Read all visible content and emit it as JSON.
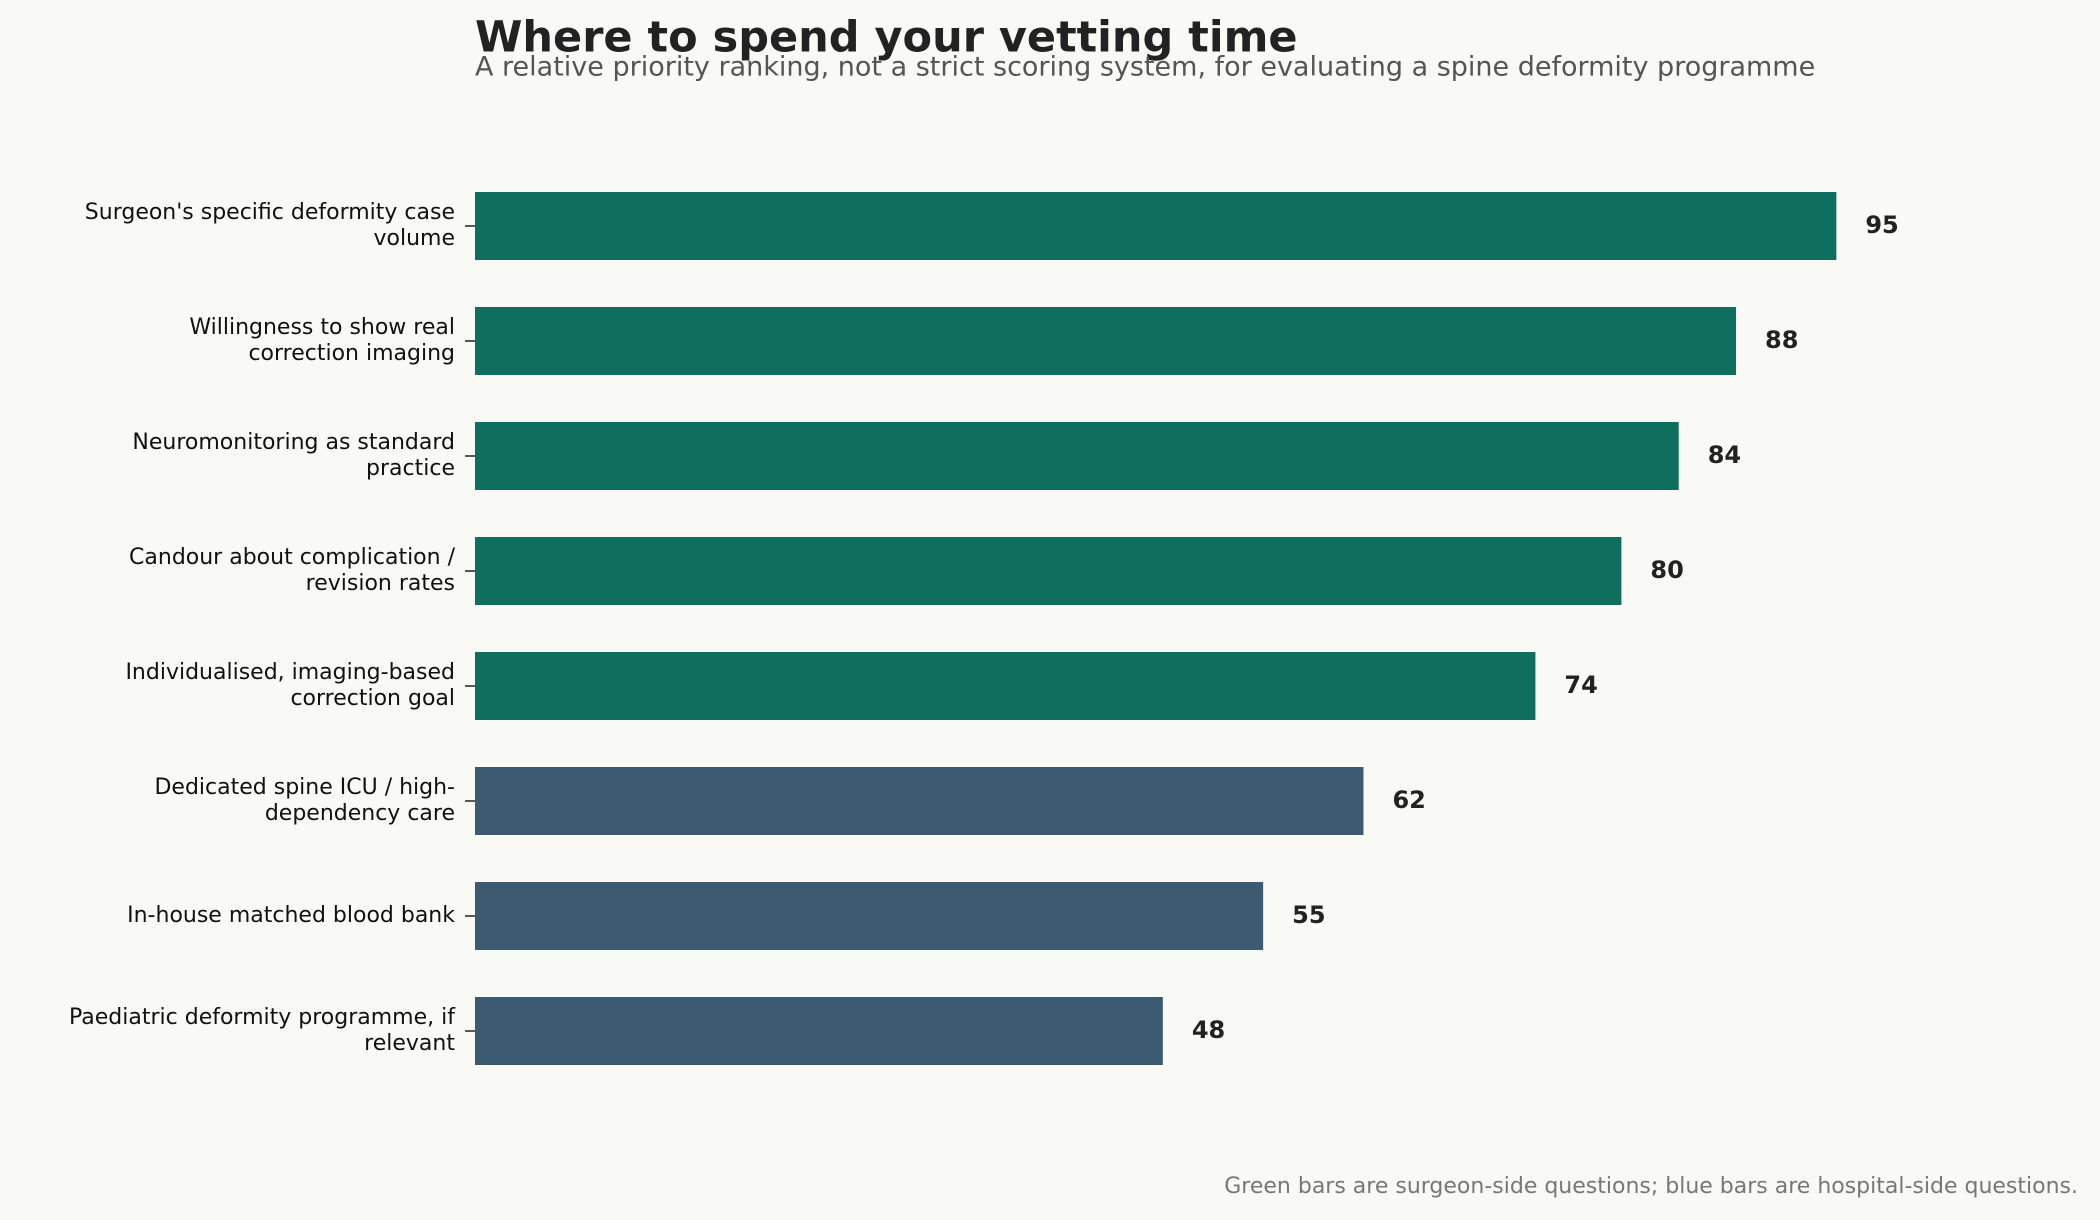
{
  "chart_data": {
    "type": "barh",
    "title": "Where to spend your vetting time",
    "subtitle": "A relative priority ranking, not a strict scoring system, for evaluating a spine deformity programme",
    "caption": "Green bars are surgeon-side questions; blue bars are hospital-side questions.",
    "categories": [
      "Surgeon's specific deformity case\nvolume",
      "Willingness to show real\ncorrection imaging",
      "Neuromonitoring as standard\npractice",
      "Candour about complication /\nrevision rates",
      "Individualised, imaging-based\ncorrection goal",
      "Dedicated spine ICU / high-\ndependency care",
      "In-house matched blood bank",
      "Paediatric deformity programme, if\nrelevant"
    ],
    "values": [
      95,
      88,
      84,
      80,
      74,
      62,
      55,
      48
    ],
    "colors": [
      "#0e6f5f",
      "#0e6f5f",
      "#0e6f5f",
      "#0e6f5f",
      "#0e6f5f",
      "#3d5a73",
      "#3d5a73",
      "#3d5a73"
    ],
    "xlim": [
      0,
      100
    ]
  }
}
